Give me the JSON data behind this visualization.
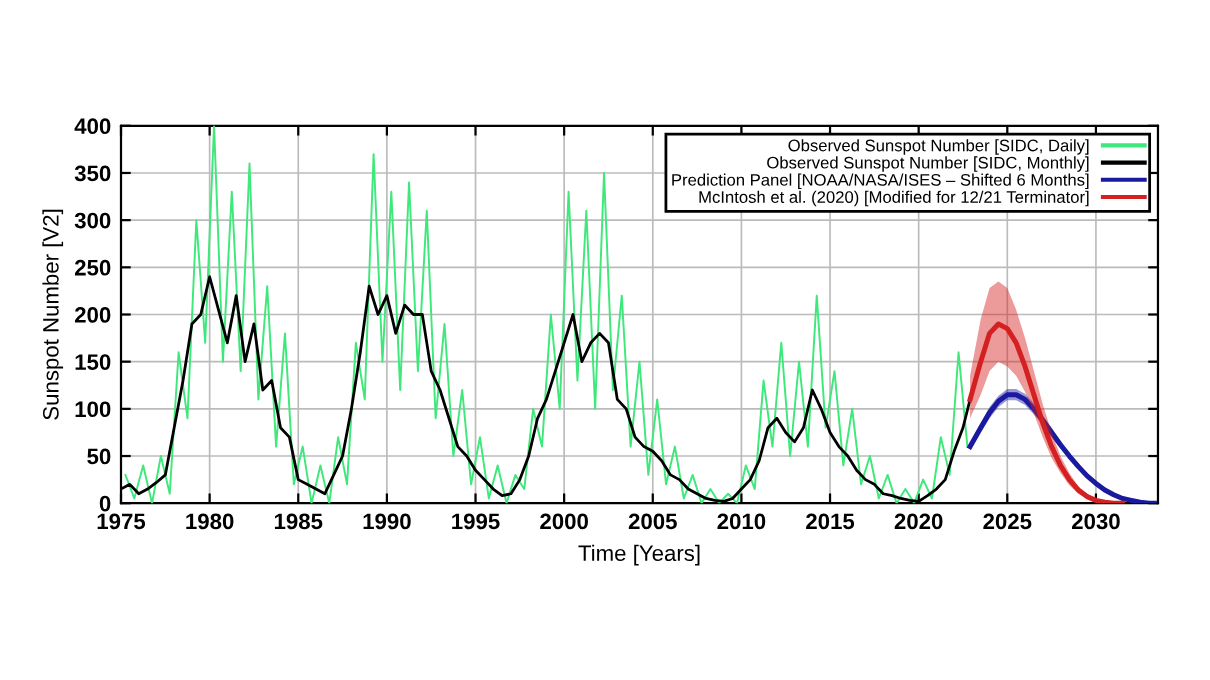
{
  "chart_data": {
    "type": "line",
    "xlabel": "Time [Years]",
    "ylabel": "Sunspot Number [V2]",
    "xlim": [
      1975,
      2033.5
    ],
    "xticks": [
      1975,
      1980,
      1985,
      1990,
      1995,
      2000,
      2005,
      2010,
      2015,
      2020,
      2025,
      2030
    ],
    "ylim": [
      0,
      400
    ],
    "yticks": [
      0,
      50,
      100,
      150,
      200,
      250,
      300,
      350,
      400
    ],
    "grid": true,
    "legend": "top right",
    "series": [
      {
        "name": "Observed Sunspot Number [SIDC, Daily]",
        "color": "#3ee87a",
        "x": [
          1975.25,
          1975.75,
          1976.25,
          1976.75,
          1977.25,
          1977.75,
          1978.25,
          1978.75,
          1979.25,
          1979.75,
          1980.25,
          1980.75,
          1981.25,
          1981.75,
          1982.25,
          1982.75,
          1983.25,
          1983.75,
          1984.25,
          1984.75,
          1985.25,
          1985.75,
          1986.25,
          1986.75,
          1987.25,
          1987.75,
          1988.25,
          1988.75,
          1989.25,
          1989.75,
          1990.25,
          1990.75,
          1991.25,
          1991.75,
          1992.25,
          1992.75,
          1993.25,
          1993.75,
          1994.25,
          1994.75,
          1995.25,
          1995.75,
          1996.25,
          1996.75,
          1997.25,
          1997.75,
          1998.25,
          1998.75,
          1999.25,
          1999.75,
          2000.25,
          2000.75,
          2001.25,
          2001.75,
          2002.25,
          2002.75,
          2003.25,
          2003.75,
          2004.25,
          2004.75,
          2005.25,
          2005.75,
          2006.25,
          2006.75,
          2007.25,
          2007.75,
          2008.25,
          2008.75,
          2009.25,
          2009.75,
          2010.25,
          2010.75,
          2011.25,
          2011.75,
          2012.25,
          2012.75,
          2013.25,
          2013.75,
          2014.25,
          2014.75,
          2015.25,
          2015.75,
          2016.25,
          2016.75,
          2017.25,
          2017.75,
          2018.25,
          2018.75,
          2019.25,
          2019.75,
          2020.25,
          2020.75,
          2021.25,
          2021.75,
          2022.25,
          2022.75
        ],
        "values": [
          30,
          5,
          40,
          0,
          50,
          10,
          160,
          90,
          300,
          170,
          400,
          150,
          330,
          140,
          360,
          110,
          230,
          60,
          180,
          20,
          60,
          0,
          40,
          0,
          70,
          20,
          170,
          110,
          370,
          150,
          330,
          120,
          340,
          140,
          310,
          90,
          190,
          50,
          120,
          20,
          70,
          5,
          40,
          0,
          30,
          15,
          100,
          60,
          200,
          100,
          330,
          130,
          310,
          100,
          350,
          120,
          220,
          60,
          150,
          30,
          110,
          20,
          60,
          5,
          30,
          0,
          15,
          0,
          10,
          0,
          40,
          15,
          130,
          60,
          170,
          50,
          150,
          60,
          220,
          80,
          140,
          40,
          100,
          20,
          50,
          5,
          30,
          0,
          15,
          0,
          25,
          5,
          70,
          30,
          160,
          60
        ]
      },
      {
        "name": "Observed Sunspot Number [SIDC, Monthly]",
        "color": "#000000",
        "x": [
          1975.0,
          1975.5,
          1976.0,
          1976.5,
          1977.0,
          1977.5,
          1978.0,
          1978.5,
          1979.0,
          1979.5,
          1980.0,
          1980.5,
          1981.0,
          1981.5,
          1982.0,
          1982.5,
          1983.0,
          1983.5,
          1984.0,
          1984.5,
          1985.0,
          1985.5,
          1986.0,
          1986.5,
          1987.0,
          1987.5,
          1988.0,
          1988.5,
          1989.0,
          1989.5,
          1990.0,
          1990.5,
          1991.0,
          1991.5,
          1992.0,
          1992.5,
          1993.0,
          1993.5,
          1994.0,
          1994.5,
          1995.0,
          1995.5,
          1996.0,
          1996.5,
          1997.0,
          1997.5,
          1998.0,
          1998.5,
          1999.0,
          1999.5,
          2000.0,
          2000.5,
          2001.0,
          2001.5,
          2002.0,
          2002.5,
          2003.0,
          2003.5,
          2004.0,
          2004.5,
          2005.0,
          2005.5,
          2006.0,
          2006.5,
          2007.0,
          2007.5,
          2008.0,
          2008.5,
          2009.0,
          2009.5,
          2010.0,
          2010.5,
          2011.0,
          2011.5,
          2012.0,
          2012.5,
          2013.0,
          2013.5,
          2014.0,
          2014.5,
          2015.0,
          2015.5,
          2016.0,
          2016.5,
          2017.0,
          2017.5,
          2018.0,
          2018.5,
          2019.0,
          2019.5,
          2020.0,
          2020.5,
          2021.0,
          2021.5,
          2022.0,
          2022.5,
          2022.9
        ],
        "values": [
          15,
          20,
          10,
          15,
          22,
          30,
          80,
          130,
          190,
          200,
          240,
          205,
          170,
          220,
          150,
          190,
          120,
          130,
          80,
          70,
          25,
          20,
          15,
          10,
          30,
          50,
          100,
          160,
          230,
          200,
          220,
          180,
          210,
          200,
          200,
          140,
          120,
          90,
          60,
          50,
          35,
          25,
          15,
          8,
          10,
          25,
          50,
          90,
          110,
          140,
          170,
          200,
          150,
          170,
          180,
          170,
          110,
          100,
          70,
          60,
          55,
          45,
          30,
          25,
          15,
          10,
          5,
          3,
          2,
          5,
          15,
          25,
          45,
          80,
          90,
          75,
          65,
          80,
          120,
          100,
          75,
          60,
          50,
          35,
          25,
          20,
          10,
          8,
          5,
          3,
          2,
          8,
          15,
          25,
          55,
          80,
          110
        ]
      },
      {
        "name": "Prediction Panel [NOAA/NASA/ISES – Shifted 6 Months]",
        "color": "#1a1aa0",
        "x": [
          2022.9,
          2023.5,
          2024,
          2024.5,
          2025,
          2025.5,
          2026,
          2026.5,
          2027,
          2027.5,
          2028,
          2028.5,
          2029,
          2029.5,
          2030,
          2030.5,
          2031,
          2031.5,
          2032,
          2032.5,
          2033,
          2033.3
        ],
        "values": [
          60,
          80,
          96,
          108,
          115,
          115,
          110,
          100,
          88,
          75,
          62,
          50,
          39,
          29,
          21,
          14,
          9,
          5,
          3,
          1,
          0,
          0
        ],
        "upper": [
          64,
          85,
          102,
          114,
          121,
          121,
          116,
          106,
          93,
          80,
          66,
          53,
          42,
          31,
          23,
          15,
          10,
          6,
          3,
          1,
          0,
          0
        ],
        "lower": [
          56,
          75,
          90,
          102,
          109,
          109,
          104,
          94,
          83,
          70,
          58,
          47,
          36,
          27,
          19,
          13,
          8,
          4,
          3,
          1,
          0,
          0
        ]
      },
      {
        "name": "McIntosh et al. (2020) [Modified for 12/21 Terminator]",
        "color": "#d42020",
        "x": [
          2022.9,
          2023.5,
          2024,
          2024.5,
          2025,
          2025.5,
          2026,
          2026.5,
          2027,
          2027.5,
          2028,
          2028.5,
          2029,
          2029.5,
          2030,
          2030.5,
          2031,
          2031.5
        ],
        "values": [
          110,
          150,
          180,
          190,
          185,
          170,
          145,
          115,
          85,
          60,
          40,
          25,
          14,
          7,
          3,
          1,
          0,
          0
        ],
        "upper": [
          135,
          195,
          228,
          235,
          228,
          205,
          175,
          140,
          105,
          75,
          50,
          32,
          18,
          10,
          5,
          2,
          1,
          0
        ],
        "lower": [
          90,
          115,
          140,
          150,
          145,
          135,
          118,
          95,
          70,
          48,
          32,
          19,
          10,
          5,
          2,
          0,
          0,
          0
        ]
      }
    ]
  }
}
